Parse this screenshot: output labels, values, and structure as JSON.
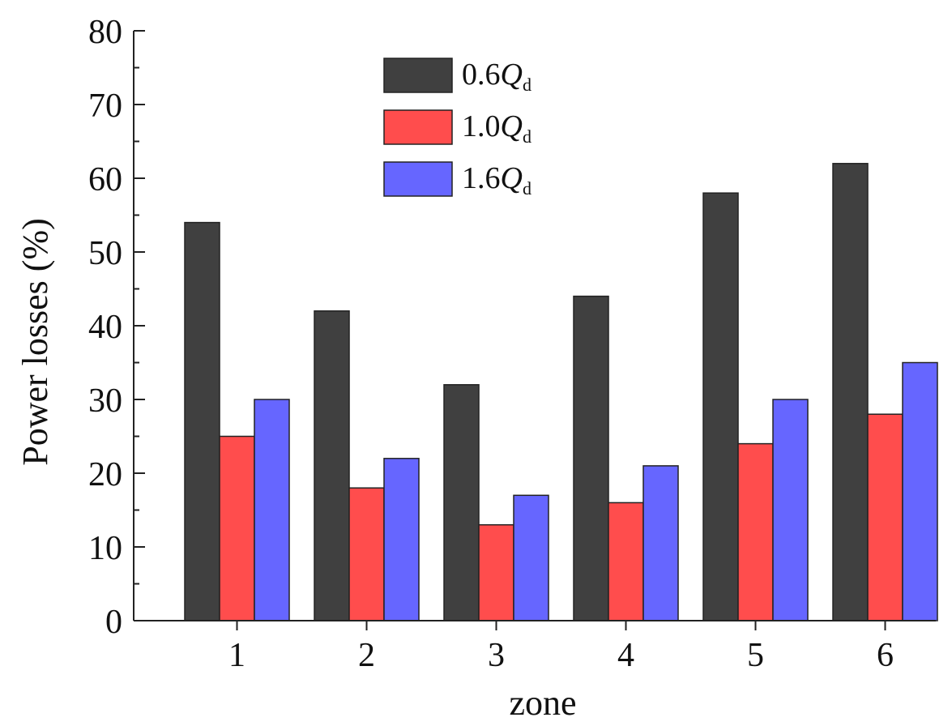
{
  "chart_data": {
    "type": "bar",
    "title": "",
    "xlabel": "zone",
    "ylabel": "Power losses (%)",
    "ylim": [
      0,
      80
    ],
    "yticks": [
      0,
      10,
      20,
      30,
      40,
      50,
      60,
      70,
      80
    ],
    "categories": [
      "1",
      "2",
      "3",
      "4",
      "5",
      "6"
    ],
    "legend_position": "top-center",
    "series": [
      {
        "name": "0.6Qd",
        "label_prefix": "0.6",
        "label_symbol": "Q",
        "label_subscript": "d",
        "color": "#404040",
        "values": [
          54,
          42,
          32,
          44,
          58,
          62
        ]
      },
      {
        "name": "1.0Qd",
        "label_prefix": "1.0",
        "label_symbol": "Q",
        "label_subscript": "d",
        "color": "#ff4d4d",
        "values": [
          25,
          18,
          13,
          16,
          24,
          28
        ]
      },
      {
        "name": "1.6Qd",
        "label_prefix": "1.6",
        "label_symbol": "Q",
        "label_subscript": "d",
        "color": "#6666ff",
        "values": [
          30,
          22,
          17,
          21,
          30,
          35
        ]
      }
    ]
  }
}
